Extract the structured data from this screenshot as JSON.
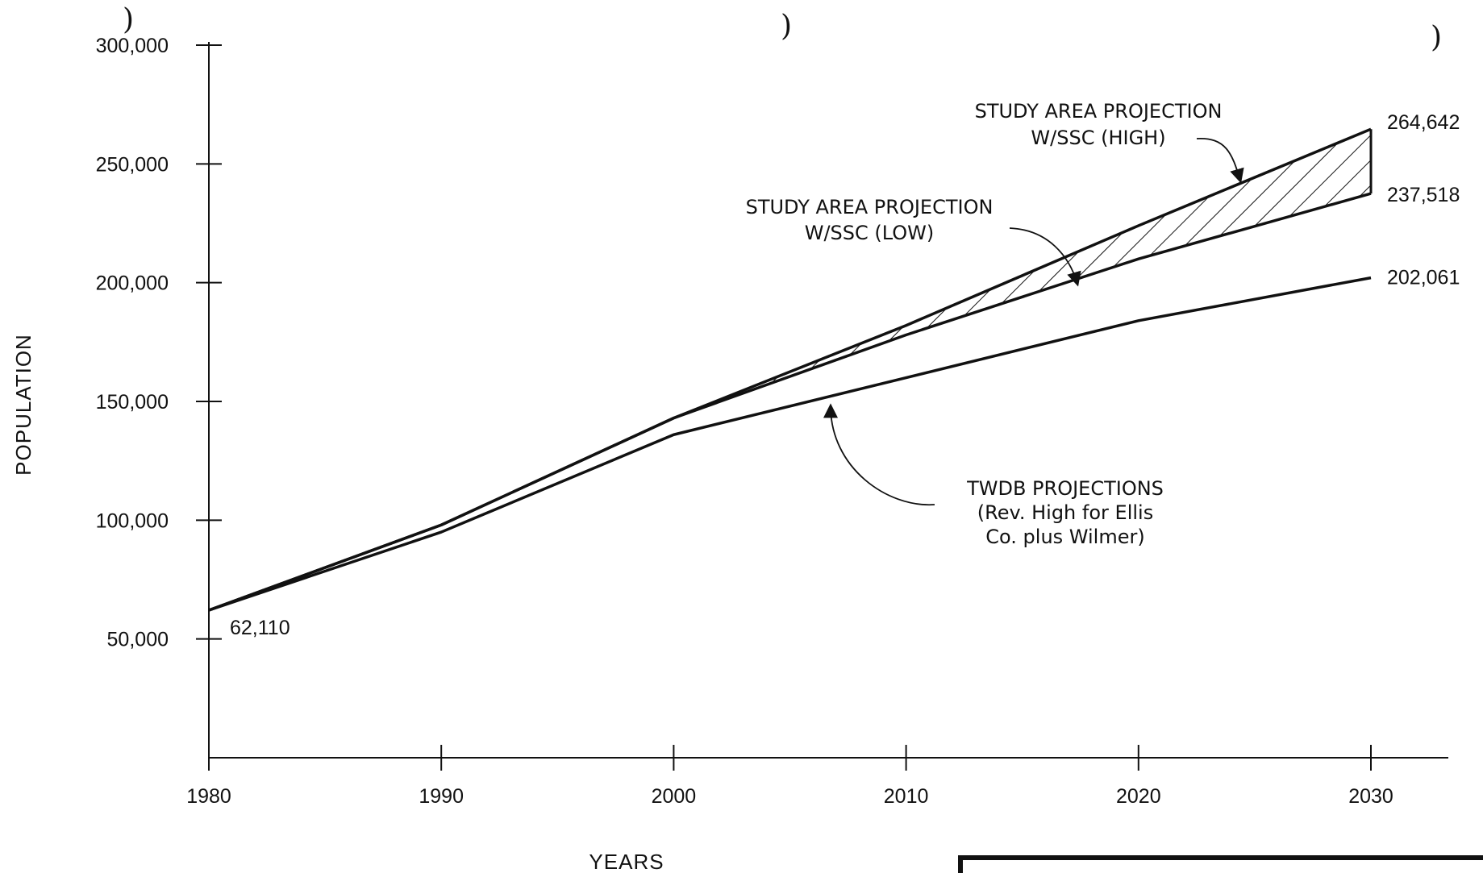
{
  "chart_data": {
    "type": "line",
    "title": "",
    "xlabel": "YEARS",
    "ylabel": "POPULATION",
    "xlim": [
      1980,
      2030
    ],
    "ylim": [
      0,
      300000
    ],
    "x_ticks": [
      1980,
      1990,
      2000,
      2010,
      2020,
      2030
    ],
    "x_tick_labels": [
      "1980",
      "1990",
      "2000",
      "2010",
      "2020",
      "2030"
    ],
    "y_ticks": [
      50000,
      100000,
      150000,
      200000,
      250000,
      300000
    ],
    "y_tick_labels": [
      "50,000",
      "100,000",
      "150,000",
      "200,000",
      "250,000",
      "300,000"
    ],
    "grid": false,
    "series": [
      {
        "name": "STUDY AREA PROJECTION W/SSC (HIGH)",
        "x": [
          1980,
          1990,
          2000,
          2010,
          2020,
          2030
        ],
        "values": [
          62110,
          98000,
          143000,
          182000,
          224000,
          264642
        ]
      },
      {
        "name": "STUDY AREA PROJECTION W/SSC (LOW)",
        "x": [
          1980,
          1990,
          2000,
          2010,
          2020,
          2030
        ],
        "values": [
          62110,
          98000,
          143000,
          178000,
          210000,
          237518
        ]
      },
      {
        "name": "TWDB PROJECTIONS (Rev. High for Ellis Co. plus Wilmer)",
        "x": [
          1980,
          1990,
          2000,
          2010,
          2020,
          2030
        ],
        "values": [
          62110,
          95000,
          136000,
          160000,
          184000,
          202061
        ]
      }
    ],
    "shaded_region": {
      "between": [
        "STUDY AREA PROJECTION W/SSC (HIGH)",
        "STUDY AREA PROJECTION W/SSC (LOW)"
      ],
      "pattern": "hatch"
    },
    "value_labels": [
      {
        "text": "62,110",
        "x": 1980,
        "y": 62110
      },
      {
        "text": "264,642",
        "x": 2030,
        "y": 264642
      },
      {
        "text": "237,518",
        "x": 2030,
        "y": 237518
      },
      {
        "text": "202,061",
        "x": 2030,
        "y": 202061
      }
    ],
    "annotations": [
      {
        "lines": [
          "STUDY AREA PROJECTION",
          "W/SSC (HIGH)"
        ],
        "points_to": {
          "x": 2024.5,
          "y": 244000
        }
      },
      {
        "lines": [
          "STUDY AREA PROJECTION",
          "W/SSC (LOW)"
        ],
        "points_to": {
          "x": 2017.5,
          "y": 202000
        }
      },
      {
        "lines": [
          "TWDB PROJECTIONS",
          "(Rev. High for Ellis",
          "Co. plus Wilmer)"
        ],
        "points_to": {
          "x": 2006.8,
          "y": 150500
        }
      }
    ]
  }
}
